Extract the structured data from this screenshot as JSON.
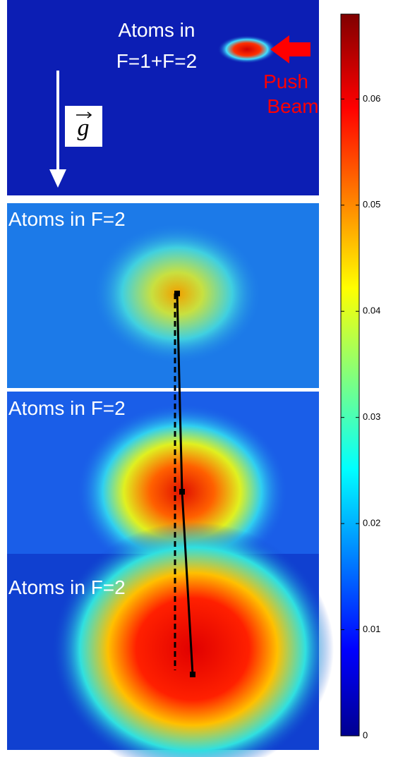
{
  "panels": [
    {
      "label_lines": [
        "Atoms in",
        "F=1+F=2"
      ]
    },
    {
      "label": "Atoms in F=2"
    },
    {
      "label": "Atoms in F=2"
    },
    {
      "label": "Atoms in F=2"
    }
  ],
  "push_beam": [
    "Push",
    "Beam"
  ],
  "gravity": "g",
  "colorbar": {
    "lim": [
      0,
      0.068
    ],
    "ticks": [
      0,
      0.01,
      0.02,
      0.03,
      0.04,
      0.05,
      0.06
    ]
  }
}
